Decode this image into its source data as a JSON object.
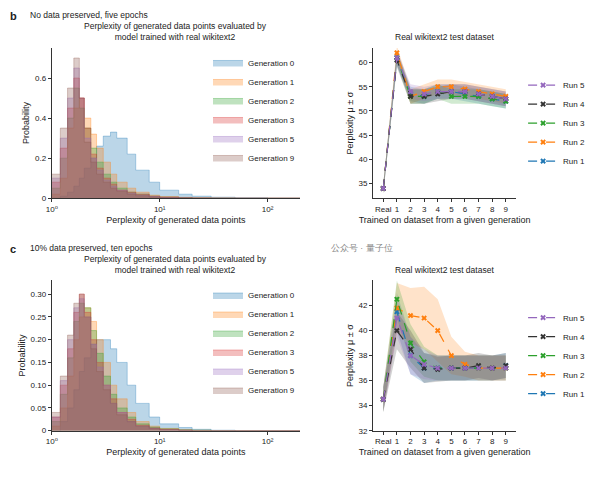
{
  "chart_data": [
    {
      "type": "histogram",
      "title": "Perplexity of generated data points evaluated by\nmodel trained with real wikitext2",
      "annotations": [
        "b",
        "No data preserved, five epochs"
      ],
      "x_label": "Perplexity of generated data points",
      "y_label": "Probability",
      "log": "x",
      "grid": false,
      "legend": "upper right",
      "xlim": [
        1,
        200
      ],
      "xticks": [
        {
          "value": 1,
          "label": "10⁰"
        },
        {
          "value": 10,
          "label": "10¹"
        },
        {
          "value": 100,
          "label": "10²"
        }
      ],
      "ylim": [
        0,
        0.75
      ],
      "yticks": [
        0,
        0.2,
        0.4,
        0.6
      ],
      "bins": [
        1,
        1.2,
        1.4,
        1.6,
        1.8,
        2,
        2.3,
        2.6,
        3,
        3.5,
        4,
        5,
        6,
        8,
        10,
        15,
        20,
        30,
        50,
        100,
        200
      ],
      "series": [
        {
          "name": "Generation 0",
          "color": "#1f77b4",
          "values": [
            0,
            0.01,
            0.03,
            0.06,
            0.1,
            0.15,
            0.2,
            0.26,
            0.31,
            0.33,
            0.3,
            0.22,
            0.14,
            0.08,
            0.04,
            0.02,
            0.01,
            0.005,
            0.002,
            0
          ]
        },
        {
          "name": "Generation 1",
          "color": "#ff7f0e",
          "values": [
            0.02,
            0.1,
            0.35,
            0.45,
            0.5,
            0.4,
            0.32,
            0.25,
            0.18,
            0.12,
            0.08,
            0.05,
            0.03,
            0.015,
            0.008,
            0.004,
            0.002,
            0.001,
            0,
            0
          ]
        },
        {
          "name": "Generation 2",
          "color": "#2ca02c",
          "values": [
            0.05,
            0.2,
            0.4,
            0.55,
            0.45,
            0.35,
            0.25,
            0.18,
            0.12,
            0.08,
            0.05,
            0.03,
            0.02,
            0.01,
            0.005,
            0.003,
            0.001,
            0,
            0,
            0
          ]
        },
        {
          "name": "Generation 3",
          "color": "#d62728",
          "values": [
            0.08,
            0.25,
            0.45,
            0.6,
            0.5,
            0.35,
            0.22,
            0.15,
            0.1,
            0.07,
            0.04,
            0.03,
            0.02,
            0.01,
            0.005,
            0.002,
            0.001,
            0,
            0,
            0
          ]
        },
        {
          "name": "Generation 5",
          "color": "#9467bd",
          "values": [
            0.1,
            0.3,
            0.5,
            0.65,
            0.5,
            0.3,
            0.2,
            0.14,
            0.09,
            0.06,
            0.04,
            0.025,
            0.015,
            0.008,
            0.004,
            0.002,
            0.001,
            0,
            0,
            0
          ]
        },
        {
          "name": "Generation 9",
          "color": "#8c564b",
          "values": [
            0.12,
            0.35,
            0.55,
            0.7,
            0.5,
            0.28,
            0.18,
            0.12,
            0.08,
            0.05,
            0.035,
            0.02,
            0.012,
            0.006,
            0.003,
            0.001,
            0,
            0,
            0,
            0
          ]
        }
      ]
    },
    {
      "type": "line",
      "title": "Real wikitext2 test dataset",
      "x_label": "Trained on dataset from a given generation",
      "y_label": "Perplexity μ ± σ",
      "grid": false,
      "legend": "right",
      "categories": [
        "Real",
        "1",
        "2",
        "3",
        "4",
        "5",
        "6",
        "7",
        "8",
        "9"
      ],
      "ylim": [
        32,
        63
      ],
      "yticks": [
        35,
        40,
        45,
        50,
        55,
        60
      ],
      "series": [
        {
          "name": "Run 1",
          "color": "#1f77b4",
          "marker": "x",
          "line_style": "dash",
          "values": [
            34,
            61,
            53.5,
            53,
            54,
            54,
            53.5,
            53,
            52.5,
            52
          ],
          "std": [
            1,
            1.5,
            1.5,
            1.5,
            1.5,
            1.5,
            1.5,
            1.5,
            1.5,
            1.5
          ]
        },
        {
          "name": "Run 2",
          "color": "#ff7f0e",
          "marker": "x",
          "line_style": "dash",
          "values": [
            34,
            62,
            53,
            54,
            55,
            55,
            54.5,
            54,
            53.5,
            53
          ],
          "std": [
            1,
            1.5,
            1.5,
            1.5,
            1.5,
            1.5,
            1.5,
            1.5,
            1.5,
            1.5
          ]
        },
        {
          "name": "Run 3",
          "color": "#2ca02c",
          "marker": "x",
          "line_style": "dash",
          "values": [
            34,
            61,
            53,
            53,
            54,
            53,
            53,
            53,
            52.5,
            52
          ],
          "std": [
            1,
            1.5,
            1.5,
            1.5,
            1.5,
            1.5,
            1.5,
            1.5,
            1.5,
            1.5
          ]
        },
        {
          "name": "Run 4",
          "color": "#333333",
          "marker": "x",
          "line_style": "dash",
          "values": [
            34,
            60.5,
            53,
            53,
            53.5,
            54,
            54,
            53.5,
            53,
            52.5
          ],
          "std": [
            1,
            1.5,
            1.5,
            1.5,
            1.5,
            1.5,
            1.5,
            1.5,
            1.5,
            1.5
          ]
        },
        {
          "name": "Run 5",
          "color": "#9467bd",
          "marker": "x",
          "line_style": "dash",
          "values": [
            34,
            61,
            54,
            53.5,
            54,
            54,
            54,
            53.5,
            53,
            52.5
          ],
          "std": [
            1,
            1.5,
            1.5,
            1.5,
            1.5,
            1.5,
            1.5,
            1.5,
            1.5,
            1.5
          ]
        }
      ]
    },
    {
      "type": "histogram",
      "title": "Perplexity of generated data points evaluated by\nmodel trained with real wikitext2",
      "annotations": [
        "c",
        "10% data preserved, ten epochs"
      ],
      "x_label": "Perplexity of generated data points",
      "y_label": "Probability",
      "log": "x",
      "grid": false,
      "legend": "upper right",
      "xlim": [
        1,
        200
      ],
      "xticks": [
        {
          "value": 1,
          "label": "10⁰"
        },
        {
          "value": 10,
          "label": "10¹"
        },
        {
          "value": 100,
          "label": "10²"
        }
      ],
      "ylim": [
        0,
        0.33
      ],
      "yticks": [
        0,
        0.05,
        {
          "value": 0.1,
          "label": "0.10"
        },
        0.15,
        {
          "value": 0.2,
          "label": "0.20"
        },
        0.25,
        {
          "value": 0.3,
          "label": "0.30"
        }
      ],
      "bins": [
        1,
        1.2,
        1.4,
        1.6,
        1.8,
        2,
        2.3,
        2.6,
        3,
        3.5,
        4,
        5,
        6,
        8,
        10,
        15,
        20,
        30,
        50,
        100,
        200
      ],
      "series": [
        {
          "name": "Generation 0",
          "color": "#1f77b4",
          "values": [
            0,
            0.02,
            0.05,
            0.09,
            0.13,
            0.16,
            0.19,
            0.2,
            0.2,
            0.18,
            0.15,
            0.1,
            0.06,
            0.03,
            0.015,
            0.007,
            0.003,
            0.001,
            0,
            0
          ]
        },
        {
          "name": "Generation 1",
          "color": "#ff7f0e",
          "values": [
            0.01,
            0.05,
            0.12,
            0.2,
            0.25,
            0.27,
            0.24,
            0.2,
            0.15,
            0.1,
            0.07,
            0.04,
            0.02,
            0.01,
            0.005,
            0.002,
            0.001,
            0,
            0,
            0
          ]
        },
        {
          "name": "Generation 2",
          "color": "#2ca02c",
          "values": [
            0.02,
            0.08,
            0.16,
            0.24,
            0.28,
            0.27,
            0.22,
            0.17,
            0.12,
            0.08,
            0.05,
            0.03,
            0.015,
            0.008,
            0.004,
            0.002,
            0.001,
            0,
            0,
            0
          ]
        },
        {
          "name": "Generation 3",
          "color": "#d62728",
          "values": [
            0.03,
            0.1,
            0.18,
            0.26,
            0.3,
            0.26,
            0.2,
            0.15,
            0.1,
            0.07,
            0.04,
            0.025,
            0.012,
            0.006,
            0.003,
            0.001,
            0,
            0,
            0,
            0
          ]
        },
        {
          "name": "Generation 5",
          "color": "#9467bd",
          "values": [
            0.03,
            0.11,
            0.2,
            0.27,
            0.29,
            0.25,
            0.19,
            0.14,
            0.1,
            0.06,
            0.04,
            0.02,
            0.01,
            0.005,
            0.002,
            0.001,
            0,
            0,
            0,
            0
          ]
        },
        {
          "name": "Generation 9",
          "color": "#8c564b",
          "values": [
            0.04,
            0.12,
            0.21,
            0.28,
            0.3,
            0.25,
            0.18,
            0.13,
            0.09,
            0.06,
            0.035,
            0.02,
            0.01,
            0.005,
            0.002,
            0.001,
            0,
            0,
            0,
            0
          ]
        }
      ]
    },
    {
      "type": "line",
      "title": "Real wikitext2 test dataset",
      "annotations": [
        "公众号 · 量子位"
      ],
      "x_label": "Trained on dataset from a given generation",
      "y_label": "Perplexity μ ± σ",
      "grid": false,
      "legend": "right",
      "categories": [
        "Real",
        "1",
        "2",
        "3",
        "4",
        "5",
        "6",
        "7",
        "8",
        "9"
      ],
      "ylim": [
        32,
        44
      ],
      "yticks": [
        32,
        34,
        36,
        38,
        40,
        42
      ],
      "series": [
        {
          "name": "Run 1",
          "color": "#1f77b4",
          "marker": "x",
          "line_style": "dash",
          "values": [
            34.5,
            41.5,
            38,
            37,
            37,
            37,
            37,
            37,
            37,
            37.2
          ],
          "std": [
            1,
            1.5,
            1.5,
            1.2,
            1,
            1,
            1,
            1,
            1,
            1
          ]
        },
        {
          "name": "Run 2",
          "color": "#ff7f0e",
          "marker": "x",
          "line_style": "dash",
          "values": [
            34.5,
            41.8,
            41.2,
            41,
            40,
            38,
            37.3,
            37,
            37,
            37
          ],
          "std": [
            1,
            2,
            2.2,
            2.5,
            2.5,
            1.5,
            1,
            1,
            1,
            1
          ]
        },
        {
          "name": "Run 3",
          "color": "#2ca02c",
          "marker": "x",
          "line_style": "dash",
          "values": [
            34.5,
            42.5,
            39,
            37.5,
            37,
            37,
            37,
            37,
            37,
            37
          ],
          "std": [
            1,
            1.5,
            1.5,
            1.2,
            1,
            1,
            1,
            1,
            1,
            1
          ]
        },
        {
          "name": "Run 4",
          "color": "#333333",
          "marker": "x",
          "line_style": "dash",
          "values": [
            34.5,
            40,
            38.5,
            37,
            36.9,
            37,
            37,
            37.2,
            37,
            37.2
          ],
          "std": [
            1,
            1.5,
            1.5,
            1.2,
            1,
            1,
            1,
            1,
            1,
            1
          ]
        },
        {
          "name": "Run 5",
          "color": "#9467bd",
          "marker": "x",
          "line_style": "dash",
          "values": [
            34.5,
            41,
            38,
            37.3,
            37,
            37,
            37,
            37,
            37,
            37
          ],
          "std": [
            1,
            1.5,
            1.5,
            1.2,
            1,
            1,
            1,
            1,
            1,
            1
          ]
        }
      ]
    }
  ]
}
